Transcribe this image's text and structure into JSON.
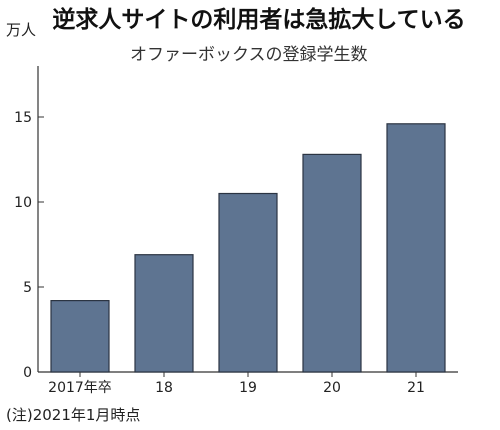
{
  "title": "逆求人サイトの利用者は急拡大している",
  "unit_label": "万人",
  "note": "(注)2021年1月時点",
  "chart_data": {
    "type": "bar",
    "title": "逆求人サイトの利用者は急拡大している",
    "subtitle": "オファーボックスの登録学生数",
    "xlabel": "",
    "ylabel": "万人",
    "categories": [
      "2017年卒",
      "18",
      "19",
      "20",
      "21"
    ],
    "series": [
      {
        "values": [
          4.2,
          6.9,
          10.5,
          12.8,
          14.6
        ]
      }
    ],
    "ylim": [
      0,
      18
    ],
    "yticks": [
      0,
      5,
      10,
      15
    ],
    "grid": false,
    "legend": "none",
    "colors": {
      "bar": "#5e7491",
      "bar_edge": "#2b3442",
      "axis": "#333333"
    }
  }
}
